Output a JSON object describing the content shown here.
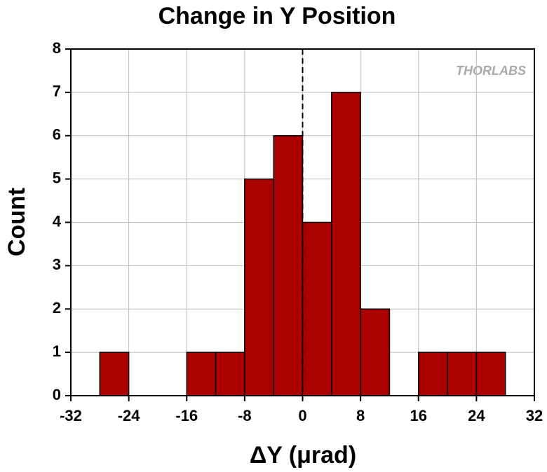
{
  "chart_data": {
    "type": "histogram",
    "title": "Change in Y Position",
    "x_label": "ΔY (μrad)",
    "y_label": "Count",
    "watermark": "THORLABS",
    "bins": [
      -28,
      -24,
      -20,
      -16,
      -12,
      -8,
      -4,
      0,
      4,
      8,
      12,
      16,
      20,
      24,
      28
    ],
    "values": [
      1,
      0,
      0,
      1,
      1,
      5,
      6,
      4,
      7,
      2,
      0,
      1,
      1,
      1
    ],
    "color": "#aa0000",
    "xlim": [
      -32,
      32
    ],
    "xticks": [
      -32,
      -24,
      -16,
      -8,
      0,
      8,
      16,
      24,
      32
    ],
    "ylim": [
      0,
      8
    ],
    "yticks": [
      0,
      1,
      2,
      3,
      4,
      5,
      6,
      7,
      8
    ],
    "grid": true,
    "reference_line_x": 0
  }
}
